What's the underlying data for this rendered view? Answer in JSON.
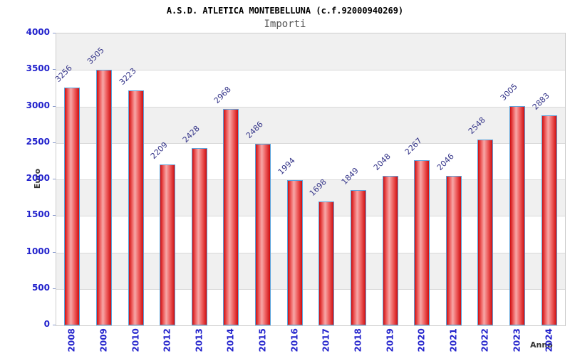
{
  "chart_data": {
    "type": "bar",
    "title": "A.S.D. ATLETICA MONTEBELLUNA (c.f.92000940269)",
    "subtitle": "Importi",
    "xlabel": "Anno",
    "ylabel": "Euro",
    "categories": [
      "2008",
      "2009",
      "2010",
      "2012",
      "2013",
      "2014",
      "2015",
      "2016",
      "2017",
      "2018",
      "2019",
      "2020",
      "2021",
      "2022",
      "2023",
      "2024"
    ],
    "values": [
      3256,
      3505,
      3223,
      2209,
      2428,
      2968,
      2486,
      1994,
      1698,
      1849,
      2048,
      2267,
      2046,
      2548,
      3005,
      2883
    ],
    "ylim": [
      0,
      4000
    ],
    "yticks": [
      0,
      500,
      1000,
      1500,
      2000,
      2500,
      3000,
      3500,
      4000
    ],
    "legend": "none",
    "grid": "alternating horizontal bands with gridlines every 500",
    "colors": {
      "bar_fill_edge": "#cf0e10",
      "bar_fill_light": "#f7a8a8",
      "bar_fill_mid": "#ee5f5f",
      "bar_border": "#5ba3dc",
      "axis_tick_text": "#2222cc",
      "value_label_text": "#333388",
      "band_shaded": "#f0f0f0",
      "band_plain": "#ffffff",
      "gridline": "#d9d9d9",
      "plot_border": "#cccccc",
      "axis_label_text": "#333333",
      "title_text": "#000000",
      "subtitle_text": "#555555",
      "tick_mark": "#8899cc"
    }
  }
}
